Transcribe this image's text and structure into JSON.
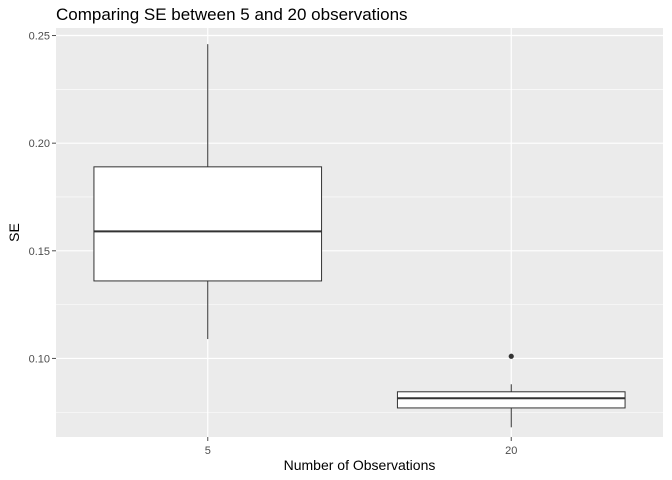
{
  "chart_data": {
    "type": "box",
    "title": "Comparing SE between 5 and 20 observations",
    "xlabel": "Number of Observations",
    "ylabel": "SE",
    "categories": [
      "5",
      "20"
    ],
    "ylim": [
      0.0635,
      0.2535
    ],
    "yticks": [
      0.1,
      0.15,
      0.2,
      0.25
    ],
    "ytick_labels": [
      "0.10",
      "0.15",
      "0.20",
      "0.25"
    ],
    "grid": true,
    "boxes": [
      {
        "category": "5",
        "whisker_low": 0.109,
        "q1": 0.136,
        "median": 0.159,
        "q3": 0.189,
        "whisker_high": 0.246,
        "outliers": []
      },
      {
        "category": "20",
        "whisker_low": 0.068,
        "q1": 0.077,
        "median": 0.0815,
        "q3": 0.0845,
        "whisker_high": 0.088,
        "outliers": [
          0.101
        ]
      }
    ],
    "colors": {
      "panel_background": "#ebebeb",
      "grid_major": "#ffffff",
      "box_fill": "#ffffff",
      "box_stroke": "#333333",
      "tick_text": "#4d4d4d"
    }
  }
}
